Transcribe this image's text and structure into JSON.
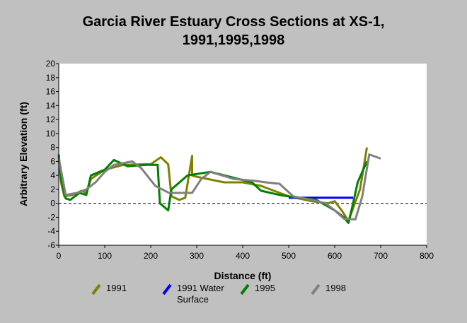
{
  "chart_data": {
    "type": "line",
    "title": [
      "Garcia River Estuary Cross Sections at XS-1,",
      "1991,1995,1998"
    ],
    "xlabel": "Distance (ft)",
    "ylabel": "Arbitrary Elevation (ft)",
    "xlim": [
      0,
      800
    ],
    "ylim": [
      -6,
      20
    ],
    "xticks": [
      0,
      100,
      200,
      300,
      400,
      500,
      600,
      700,
      800
    ],
    "yticks": [
      -6,
      -4,
      -2,
      0,
      2,
      4,
      6,
      8,
      10,
      12,
      14,
      16,
      18,
      20
    ],
    "reference_line": {
      "y": 0,
      "style": "dashed"
    },
    "grid": false,
    "legend_position": "bottom",
    "series": [
      {
        "name": "1991",
        "color": "#808000",
        "points": [
          [
            0,
            6.6
          ],
          [
            5,
            3.0
          ],
          [
            12,
            1.0
          ],
          [
            30,
            1.2
          ],
          [
            50,
            1.8
          ],
          [
            60,
            1.5
          ],
          [
            70,
            3.5
          ],
          [
            100,
            4.8
          ],
          [
            140,
            5.5
          ],
          [
            200,
            5.6
          ],
          [
            222,
            6.6
          ],
          [
            238,
            5.6
          ],
          [
            245,
            1.0
          ],
          [
            262,
            0.5
          ],
          [
            275,
            0.8
          ],
          [
            290,
            6.8
          ],
          [
            290,
            4.0
          ],
          [
            300,
            3.8
          ],
          [
            360,
            3.0
          ],
          [
            400,
            3.0
          ],
          [
            440,
            2.5
          ],
          [
            500,
            1.0
          ],
          [
            550,
            0.3
          ],
          [
            585,
            0.0
          ],
          [
            600,
            0.3
          ],
          [
            615,
            -1.0
          ],
          [
            630,
            -2.5
          ],
          [
            655,
            2.0
          ],
          [
            665,
            6.0
          ],
          [
            670,
            8.0
          ]
        ]
      },
      {
        "name": "1991 Water Surface",
        "color": "#0000ff",
        "points": [
          [
            500,
            0.8
          ],
          [
            640,
            0.8
          ]
        ]
      },
      {
        "name": "1995",
        "color": "#008000",
        "points": [
          [
            0,
            7.0
          ],
          [
            5,
            3.5
          ],
          [
            15,
            0.7
          ],
          [
            25,
            0.5
          ],
          [
            45,
            1.5
          ],
          [
            60,
            1.2
          ],
          [
            70,
            4.0
          ],
          [
            100,
            4.8
          ],
          [
            120,
            6.2
          ],
          [
            150,
            5.3
          ],
          [
            190,
            5.5
          ],
          [
            215,
            5.5
          ],
          [
            220,
            0.0
          ],
          [
            238,
            -1.0
          ],
          [
            245,
            2.0
          ],
          [
            280,
            4.0
          ],
          [
            300,
            4.2
          ],
          [
            330,
            4.5
          ],
          [
            390,
            3.5
          ],
          [
            420,
            3.0
          ],
          [
            440,
            1.8
          ],
          [
            480,
            1.2
          ],
          [
            520,
            0.8
          ],
          [
            560,
            0.5
          ],
          [
            600,
            -1.0
          ],
          [
            620,
            -2.0
          ],
          [
            630,
            -2.8
          ],
          [
            640,
            0.0
          ],
          [
            650,
            3.0
          ],
          [
            670,
            6.0
          ]
        ]
      },
      {
        "name": "1998",
        "color": "#808080",
        "points": [
          [
            0,
            6.5
          ],
          [
            15,
            1.2
          ],
          [
            40,
            1.5
          ],
          [
            60,
            2.0
          ],
          [
            80,
            3.0
          ],
          [
            100,
            4.5
          ],
          [
            120,
            5.5
          ],
          [
            160,
            6.0
          ],
          [
            180,
            5.0
          ],
          [
            210,
            2.5
          ],
          [
            240,
            1.5
          ],
          [
            270,
            1.5
          ],
          [
            290,
            1.5
          ],
          [
            310,
            3.5
          ],
          [
            330,
            4.5
          ],
          [
            380,
            3.5
          ],
          [
            430,
            3.2
          ],
          [
            450,
            3.0
          ],
          [
            480,
            2.8
          ],
          [
            510,
            1.0
          ],
          [
            550,
            0.5
          ],
          [
            580,
            0.0
          ],
          [
            600,
            -1.0
          ],
          [
            620,
            -2.2
          ],
          [
            645,
            -2.3
          ],
          [
            660,
            1.0
          ],
          [
            675,
            7.0
          ],
          [
            700,
            6.4
          ]
        ]
      }
    ]
  },
  "legend": [
    {
      "label": "1991",
      "color": "#808000"
    },
    {
      "label": "1991 Water Surface",
      "color": "#0000ff"
    },
    {
      "label": "1995",
      "color": "#008000"
    },
    {
      "label": "1998",
      "color": "#808080"
    }
  ]
}
